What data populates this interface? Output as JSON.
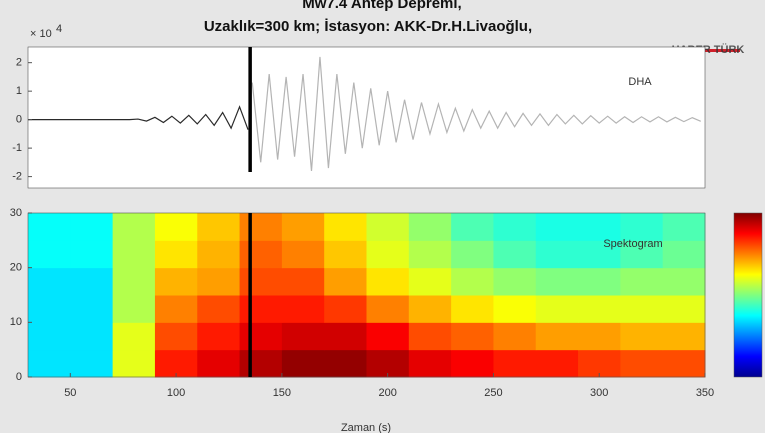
{
  "chart_data": [
    {
      "type": "line",
      "title": "Mw7.4 Antep Depremi,",
      "subtitle": "Uzaklık=300 km; İstasyon: AKK-Dr.H.Livaoğlu,",
      "y_multiplier": {
        "base": "× 10",
        "exponent": "4"
      },
      "xlim": [
        30,
        350
      ],
      "ylim": [
        -2.4,
        2.55
      ],
      "yticks": [
        -2,
        -1,
        0,
        1,
        2
      ],
      "vline_x": 135,
      "series": [
        {
          "color": "#2a2a2a",
          "x": [
            30,
            34,
            38,
            42,
            46,
            50,
            54,
            58,
            62,
            66,
            70,
            74,
            78,
            82,
            86,
            90,
            94,
            98,
            102,
            106,
            110,
            114,
            118,
            122,
            126,
            130,
            134
          ],
          "values": [
            0,
            0,
            0,
            0,
            0,
            0,
            0,
            0,
            0,
            0,
            0,
            0,
            0,
            0.02,
            -0.05,
            0.08,
            -0.1,
            0.12,
            -0.12,
            0.15,
            -0.15,
            0.18,
            -0.2,
            0.25,
            -0.3,
            0.45,
            -0.35
          ]
        },
        {
          "color": "#b4b4b4",
          "x": [
            136,
            140,
            144,
            148,
            152,
            156,
            160,
            164,
            168,
            172,
            176,
            180,
            184,
            188,
            192,
            196,
            200,
            204,
            208,
            212,
            216,
            220,
            224,
            228,
            232,
            236,
            240,
            244,
            248,
            252,
            256,
            260,
            264,
            268,
            272,
            276,
            280,
            284,
            288,
            292,
            296,
            300,
            304,
            308,
            312,
            316,
            320,
            324,
            328,
            332,
            336,
            340,
            344,
            348
          ],
          "values": [
            1.3,
            -1.5,
            1.6,
            -1.4,
            1.5,
            -1.3,
            1.6,
            -1.8,
            2.2,
            -1.7,
            1.6,
            -1.2,
            1.3,
            -1.0,
            1.1,
            -0.9,
            1.0,
            -0.8,
            0.7,
            -0.7,
            0.6,
            -0.5,
            0.55,
            -0.45,
            0.4,
            -0.4,
            0.35,
            -0.3,
            0.3,
            -0.3,
            0.25,
            -0.25,
            0.22,
            -0.2,
            0.2,
            -0.2,
            0.18,
            -0.15,
            0.15,
            -0.15,
            0.14,
            -0.12,
            0.12,
            -0.12,
            0.1,
            -0.1,
            0.1,
            -0.08,
            0.1,
            -0.08,
            0.08,
            -0.07,
            0.07,
            -0.06
          ]
        }
      ]
    },
    {
      "type": "heatmap",
      "annotation": "Spektogram",
      "xlabel": "Zaman (s)",
      "xlim": [
        30,
        350
      ],
      "ylim": [
        0,
        30
      ],
      "xticks": [
        50,
        100,
        150,
        200,
        250,
        300,
        350
      ],
      "yticks": [
        0,
        10,
        20,
        30
      ],
      "vline_x": 135,
      "clim": [
        0,
        1
      ],
      "colormap": "jet",
      "x_edges": [
        30,
        50,
        70,
        90,
        110,
        130,
        150,
        170,
        190,
        210,
        230,
        250,
        270,
        290,
        310,
        330,
        350
      ],
      "y_edges": [
        0,
        5,
        10,
        15,
        20,
        25,
        30
      ],
      "values": [
        [
          0.35,
          0.35,
          0.6,
          0.85,
          0.9,
          0.95,
          0.98,
          0.98,
          0.95,
          0.9,
          0.88,
          0.85,
          0.85,
          0.82,
          0.8,
          0.8
        ],
        [
          0.35,
          0.35,
          0.6,
          0.8,
          0.85,
          0.9,
          0.92,
          0.92,
          0.88,
          0.8,
          0.78,
          0.75,
          0.72,
          0.72,
          0.7,
          0.7
        ],
        [
          0.35,
          0.35,
          0.55,
          0.75,
          0.8,
          0.85,
          0.85,
          0.82,
          0.75,
          0.7,
          0.65,
          0.62,
          0.6,
          0.6,
          0.6,
          0.6
        ],
        [
          0.35,
          0.35,
          0.55,
          0.7,
          0.72,
          0.8,
          0.8,
          0.72,
          0.65,
          0.6,
          0.55,
          0.52,
          0.5,
          0.5,
          0.52,
          0.52
        ],
        [
          0.38,
          0.38,
          0.55,
          0.65,
          0.7,
          0.78,
          0.75,
          0.68,
          0.6,
          0.55,
          0.5,
          0.45,
          0.42,
          0.42,
          0.45,
          0.48
        ],
        [
          0.38,
          0.38,
          0.55,
          0.62,
          0.68,
          0.75,
          0.72,
          0.65,
          0.58,
          0.52,
          0.45,
          0.42,
          0.4,
          0.4,
          0.42,
          0.45
        ]
      ]
    }
  ],
  "logos": {
    "dha": "DHA",
    "channel": "HABER TÜRK"
  }
}
